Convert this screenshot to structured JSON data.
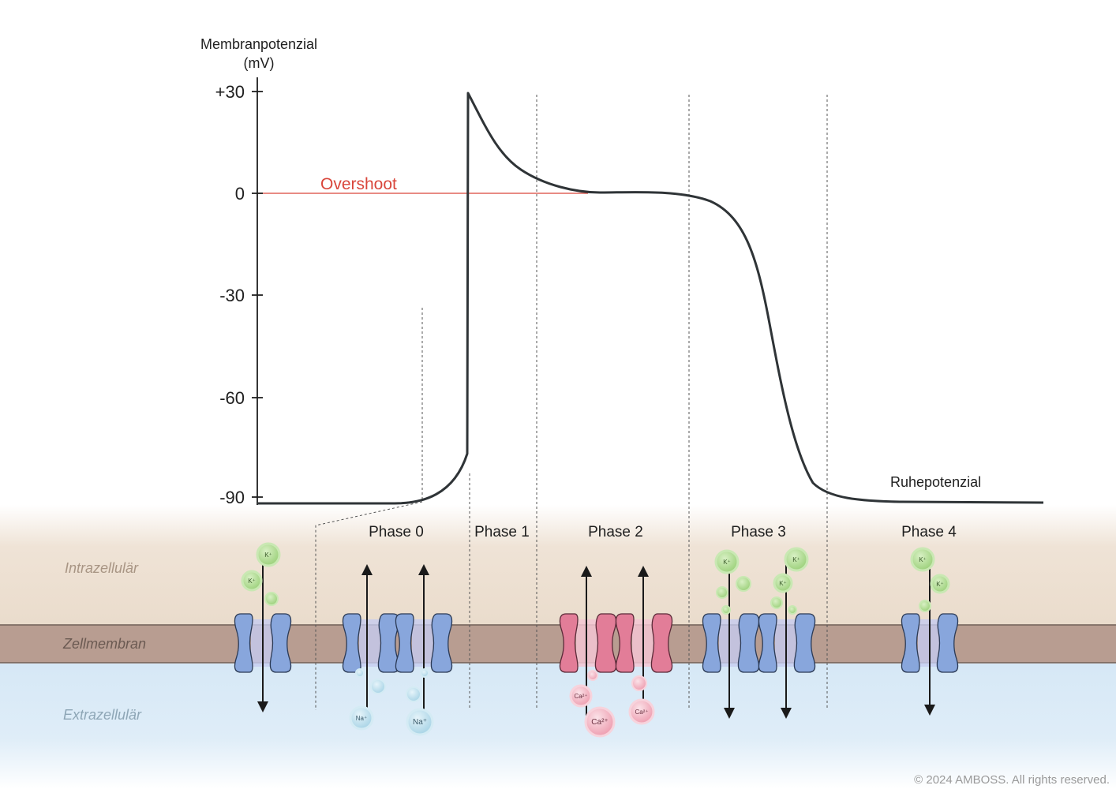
{
  "diagram": {
    "y_axis": {
      "title_line1": "Membranpotenzial",
      "title_line2": "(mV)",
      "ticks": [
        "+30",
        "0",
        "-30",
        "-60",
        "-90"
      ]
    },
    "overshoot_label": "Overshoot",
    "resting_label": "Ruhepotenzial",
    "phases": [
      "Phase 0",
      "Phase 1",
      "Phase 2",
      "Phase 3",
      "Phase 4"
    ],
    "regions": {
      "intracellular": "Intrazellulär",
      "membrane": "Zellmembran",
      "extracellular": "Extrazellulär"
    },
    "ions": {
      "potassium": "K⁺",
      "sodium": "Na⁺",
      "calcium": "Ca²⁺"
    },
    "copyright": "© 2024 AMBOSS. All rights reserved.",
    "colors": {
      "curve": "#2f3437",
      "overshoot": "#d9463b",
      "intracellular_bg": "#efe2d3",
      "membrane": "#b59a8e",
      "extracellular_bg": "#d9eaf7",
      "channel_blue": "#88a6dc",
      "channel_pink": "#e27d98",
      "ion_green": "#a9d98a",
      "ion_blue": "#b7dcea",
      "ion_pink": "#f2b6c2"
    }
  }
}
